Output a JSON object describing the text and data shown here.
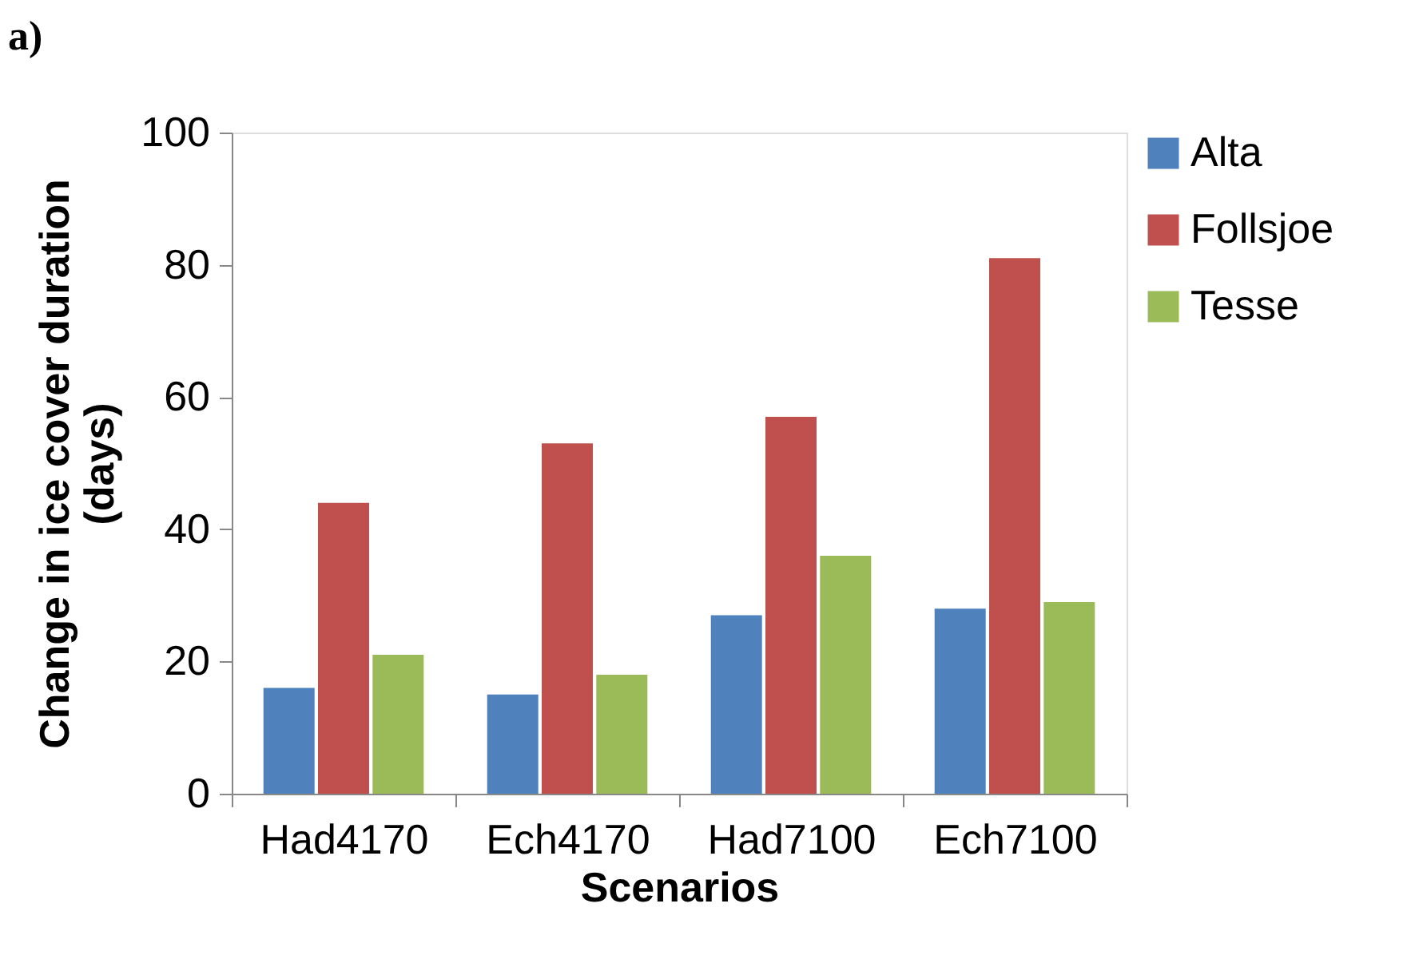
{
  "chart_data": {
    "type": "bar",
    "title": "a)",
    "xlabel": "Scenarios",
    "ylabel": "Change in ice cover duration (days)",
    "categories": [
      "Had4170",
      "Ech4170",
      "Had7100",
      "Ech7100"
    ],
    "series": [
      {
        "name": "Alta",
        "color": "#4f81bd",
        "values": [
          16,
          15,
          27,
          28
        ]
      },
      {
        "name": "Follsjoe",
        "color": "#c0504d",
        "values": [
          44,
          53,
          57,
          81
        ]
      },
      {
        "name": "Tesse",
        "color": "#9bbb59",
        "values": [
          21,
          18,
          36,
          29
        ]
      }
    ],
    "ylim": [
      0,
      100
    ],
    "yticks": [
      0,
      20,
      40,
      60,
      80,
      100
    ],
    "grid": false,
    "legend": "right"
  }
}
